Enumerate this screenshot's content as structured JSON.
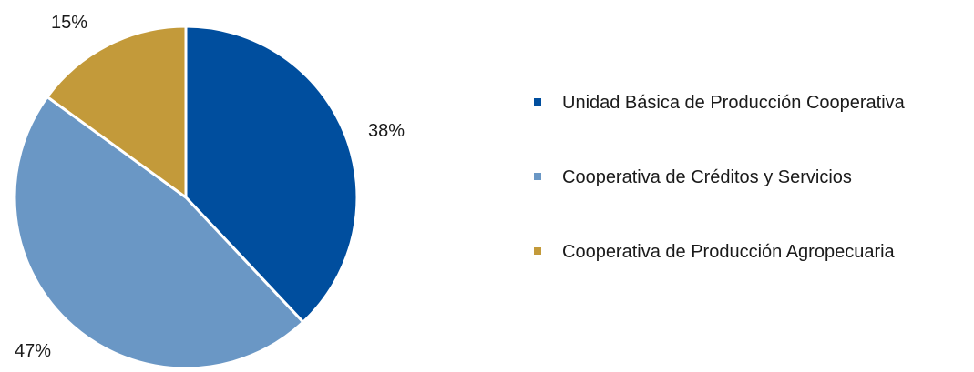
{
  "chart_data": {
    "type": "pie",
    "title": "",
    "legend_position": "right",
    "start_angle_deg": 0,
    "direction": "clockwise",
    "slices": [
      {
        "name": "Unidad Básica de Producción Cooperativa",
        "value": 38,
        "label": "38%",
        "color": "#004e9e"
      },
      {
        "name": "Cooperativa de Créditos y Servicios",
        "value": 47,
        "label": "47%",
        "color": "#6a97c5"
      },
      {
        "name": "Cooperativa de Producción Agropecuaria",
        "value": 15,
        "label": "15%",
        "color": "#c39a3a"
      }
    ]
  }
}
